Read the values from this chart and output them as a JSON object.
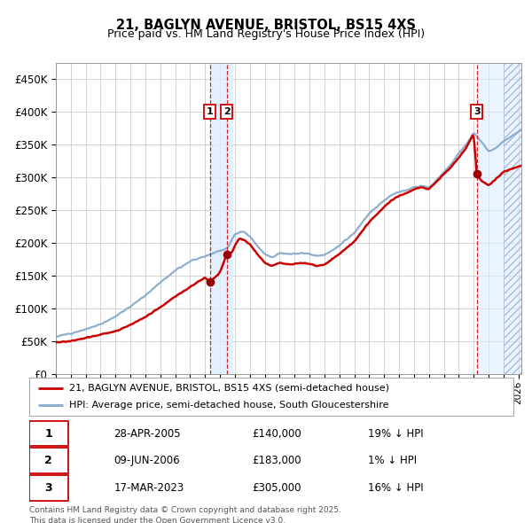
{
  "title": "21, BAGLYN AVENUE, BRISTOL, BS15 4XS",
  "subtitle": "Price paid vs. HM Land Registry's House Price Index (HPI)",
  "legend_line1": "21, BAGLYN AVENUE, BRISTOL, BS15 4XS (semi-detached house)",
  "legend_line2": "HPI: Average price, semi-detached house, South Gloucestershire",
  "footer": "Contains HM Land Registry data © Crown copyright and database right 2025.\nThis data is licensed under the Open Government Licence v3.0.",
  "red_color": "#cc0000",
  "blue_color": "#88aacc",
  "sale_marker_color": "#990000",
  "transactions": [
    {
      "label": "1",
      "date": 2005.32,
      "price": 140000
    },
    {
      "label": "2",
      "date": 2006.46,
      "price": 183000
    },
    {
      "label": "3",
      "date": 2023.21,
      "price": 305000
    }
  ],
  "table_rows": [
    [
      "1",
      "28-APR-2005",
      "£140,000",
      "19% ↓ HPI"
    ],
    [
      "2",
      "09-JUN-2006",
      "£183,000",
      "1% ↓ HPI"
    ],
    [
      "3",
      "17-MAR-2023",
      "£305,000",
      "16% ↓ HPI"
    ]
  ],
  "ylim": [
    0,
    475000
  ],
  "yticks": [
    0,
    50000,
    100000,
    150000,
    200000,
    250000,
    300000,
    350000,
    400000,
    450000
  ],
  "xlim_start": 1995.0,
  "xlim_end": 2026.2,
  "background_color": "#ffffff",
  "grid_color": "#cccccc",
  "shaded_color": "#ddeeff",
  "shade1_start": 2005.32,
  "shade1_end": 2006.8,
  "shade3_start": 2023.21,
  "shade3_end": 2026.2,
  "hatch_start": 2025.0,
  "hatch_end": 2026.2
}
